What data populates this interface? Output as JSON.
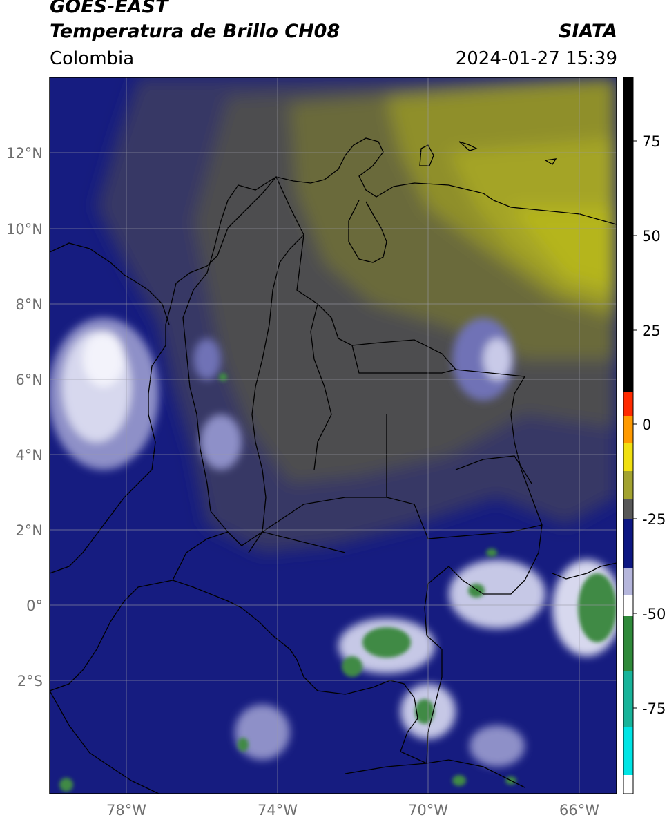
{
  "header": {
    "satellite": "GOES-EAST",
    "product": "Temperatura de Brillo CH08",
    "source": "SIATA",
    "region": "Colombia",
    "timestamp": "2024-01-27 15:39"
  },
  "map": {
    "lon_range": [
      -80,
      -65
    ],
    "lat_range": [
      -5,
      14
    ],
    "lon_ticks": [
      {
        "value": -78,
        "label": "78°W"
      },
      {
        "value": -74,
        "label": "74°W"
      },
      {
        "value": -70,
        "label": "70°W"
      },
      {
        "value": -66,
        "label": "66°W"
      }
    ],
    "lat_ticks": [
      {
        "value": 12,
        "label": "12°N"
      },
      {
        "value": 10,
        "label": "10°N"
      },
      {
        "value": 8,
        "label": "8°N"
      },
      {
        "value": 6,
        "label": "6°N"
      },
      {
        "value": 4,
        "label": "4°N"
      },
      {
        "value": 2,
        "label": "2°N"
      },
      {
        "value": 0,
        "label": "0°"
      },
      {
        "value": -2,
        "label": "2°S"
      }
    ],
    "gridlines": true
  },
  "colorbar": {
    "range": [
      -95,
      90
    ],
    "ticks": [
      {
        "value": 75,
        "label": "75"
      },
      {
        "value": 50,
        "label": "50"
      },
      {
        "value": 25,
        "label": "25"
      },
      {
        "value": 0,
        "label": "0"
      },
      {
        "value": -25,
        "label": "-25"
      },
      {
        "value": -50,
        "label": "-50"
      },
      {
        "value": -75,
        "label": "-75"
      }
    ],
    "palette": {
      "black": "#000000",
      "red": "#ff2a00",
      "orange": "#ff9a00",
      "yellow": "#f1e010",
      "olive": "#a3a330",
      "gray": "#585858",
      "navy": "#0c1682",
      "lavender": "#b5b6dc",
      "green": "#2f8a3a",
      "teal": "#18b49a",
      "cyan": "#00e5e5"
    }
  }
}
